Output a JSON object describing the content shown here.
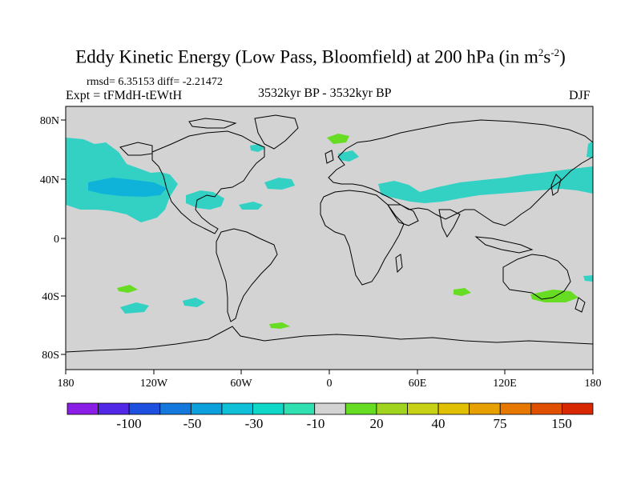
{
  "title": {
    "main": "Eddy Kinetic Energy (Low Pass, Bloomfield) at 200 hPa (in m",
    "sup1": "2",
    "mid": "s",
    "sup2": "-2",
    "close": ")"
  },
  "stats": "rmsd= 6.35153 diff= -2.21472",
  "experiment": "Expt = tFMdH-tEWtH",
  "period": "3532kyr BP - 3532kyr BP",
  "season": "DJF",
  "map": {
    "lat_labels": [
      "80N",
      "40N",
      "0",
      "40S",
      "80S"
    ],
    "lon_labels": [
      "180",
      "120W",
      "60W",
      "0",
      "60E",
      "120E",
      "180"
    ],
    "background_color": "#d3d3d3",
    "anomaly_regions": [
      {
        "name": "north-pacific",
        "category": "-10 to -30",
        "color": "#33d1c4"
      },
      {
        "name": "north-pacific-core",
        "category": "-30 to -50",
        "color": "#0fb2d8"
      },
      {
        "name": "gulf-of-mexico",
        "category": "-10 to -30",
        "color": "#33d1c4"
      },
      {
        "name": "north-atlantic",
        "category": "-10 to -30",
        "color": "#33d1c4"
      },
      {
        "name": "mediterranean-asia-jet",
        "category": "-10 to -30",
        "color": "#33d1c4"
      },
      {
        "name": "scandinavia",
        "category": "10 to 20",
        "color": "#66dd22"
      },
      {
        "name": "southern-indian-ocean",
        "category": "10 to 20",
        "color": "#66dd22"
      },
      {
        "name": "southeast-australia",
        "category": "10 to 20",
        "color": "#66dd22"
      }
    ]
  },
  "colorbar": {
    "colors": [
      "#8a1ee6",
      "#5028e6",
      "#1e50e0",
      "#1478dc",
      "#0ca0dc",
      "#10c0d8",
      "#10d8c8",
      "#30e0b0",
      "#d3d3d3",
      "#66dd22",
      "#a0d41e",
      "#c8d214",
      "#e0c000",
      "#e6a000",
      "#e67800",
      "#e05000",
      "#d82800"
    ],
    "labels": [
      "-100",
      "-50",
      "-30",
      "-10",
      "20",
      "40",
      "75",
      "150"
    ]
  }
}
